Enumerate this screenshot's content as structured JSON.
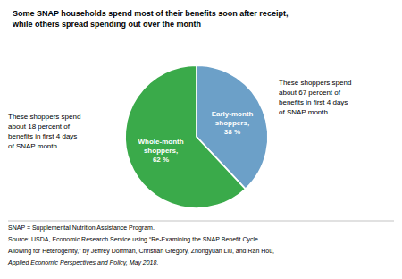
{
  "chart_data": {
    "type": "pie",
    "title": "Some SNAP households spend most of their benefits soon after receipt,\nwhile others spread spending out over the month",
    "categories": [
      "Early-month\nshoppers,\n38 %",
      "Whole-month\nshoppers,\n62 %"
    ],
    "values": [
      38,
      62
    ],
    "colors": [
      "#6ca0c8",
      "#3aaa4a"
    ],
    "annotations": [
      "These shoppers spend\nabout 67 percent of\nbenefits in first 4 days\nof SNAP month",
      "These shoppers spend\nabout 18 percent of\nbenefits in first 4 days\nof SNAP month",
      "SNAP = Supplemental Nutrition Assistance Program.",
      "Source: USDA, Economic Research Service using “Re-Examining the SNAP Benefit Cycle",
      "Allowing for Heterogenity,” by Jeffrey Dorfman, Christian Gregory, Zhongyuan Liu, and Ran Hou,",
      "Applied Economic Perspectives and Policy, May 2018."
    ],
    "legend": false
  }
}
